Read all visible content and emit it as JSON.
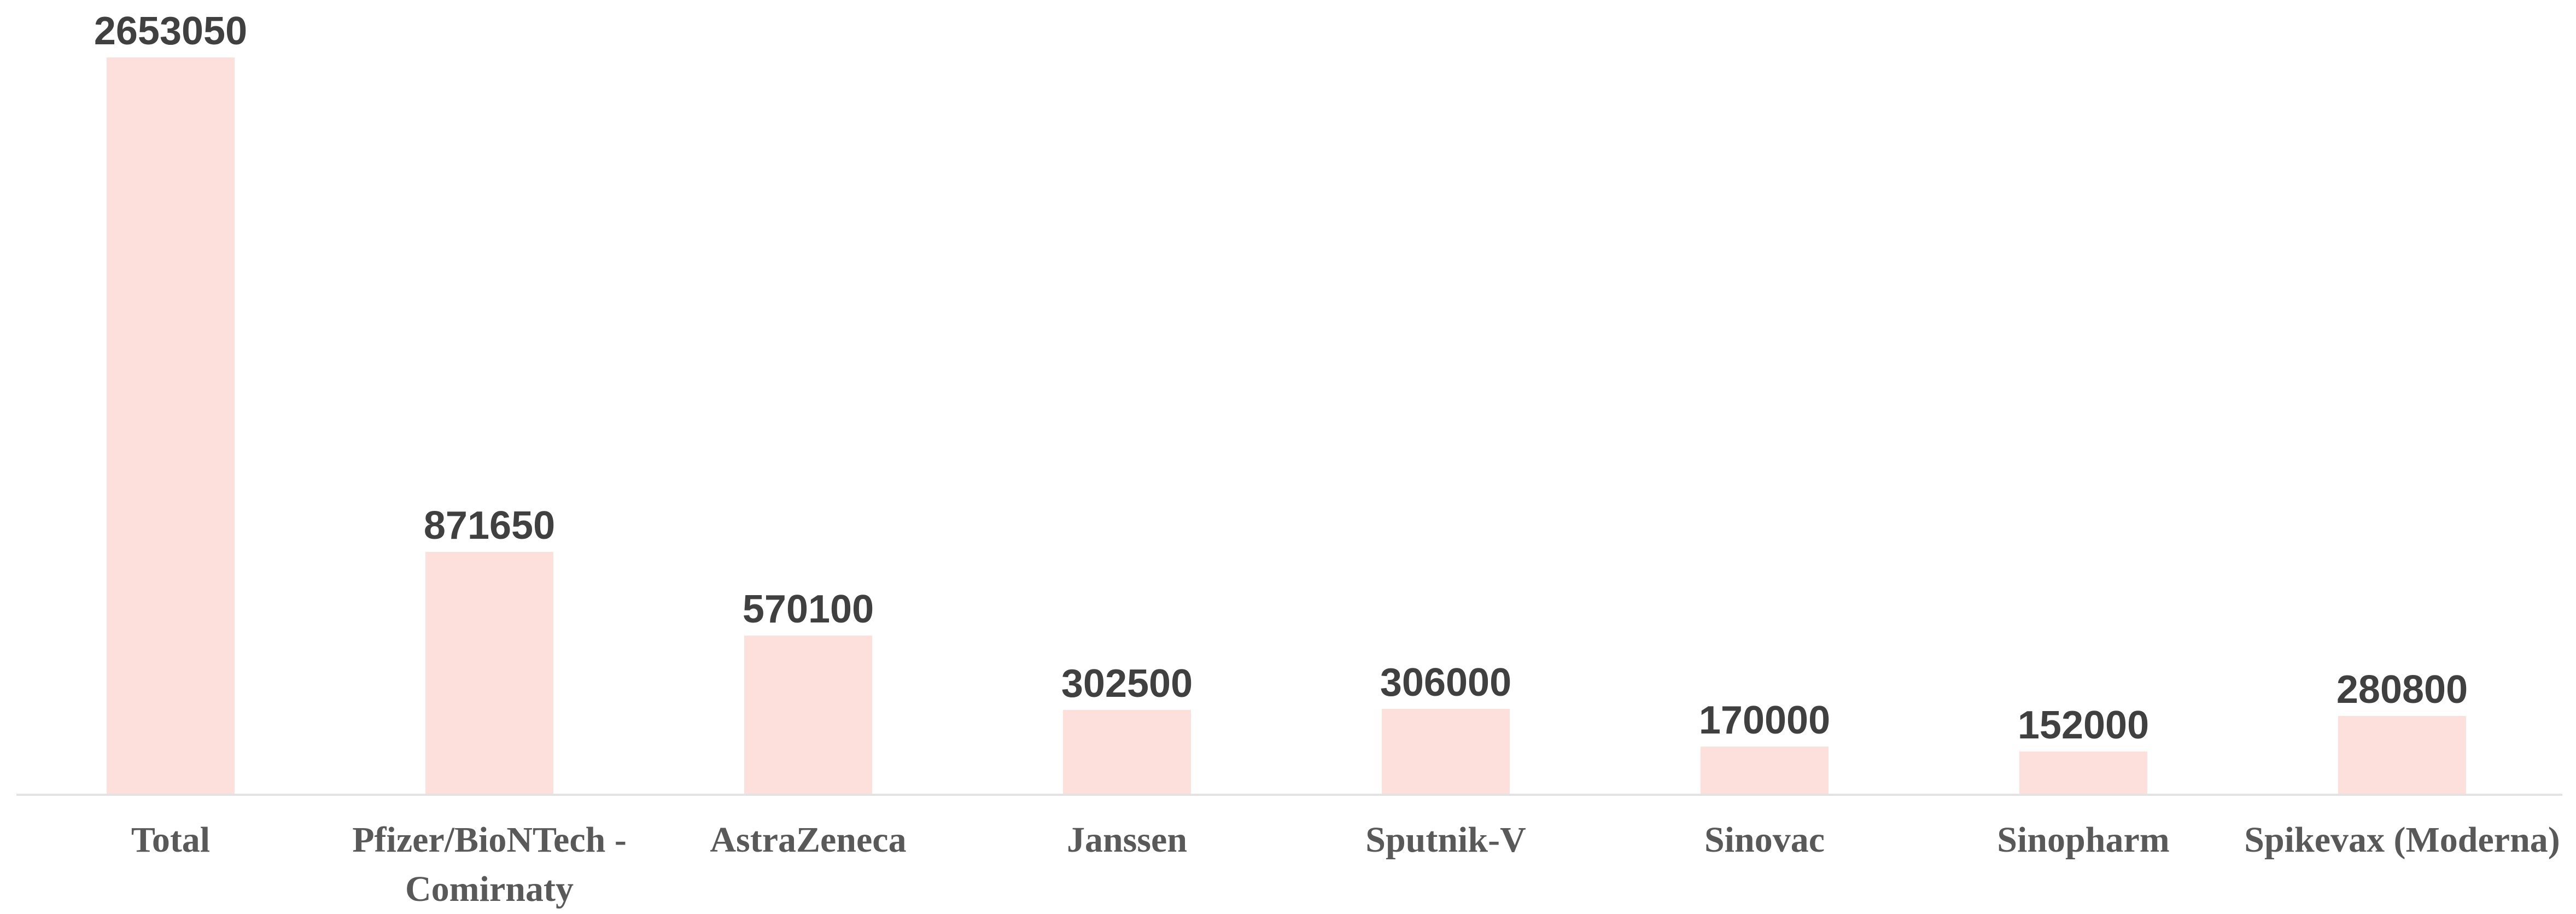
{
  "chart_data": {
    "type": "bar",
    "categories": [
      "Total",
      "Pfizer/BioNTech - Comirnaty",
      "AstraZeneca",
      "Janssen",
      "Sputnik-V",
      "Sinovac",
      "Sinopharm",
      "Spikevax (Moderna)"
    ],
    "values": [
      2653050,
      871650,
      570100,
      302500,
      306000,
      170000,
      152000,
      280800
    ],
    "color": "#fde0dc"
  }
}
